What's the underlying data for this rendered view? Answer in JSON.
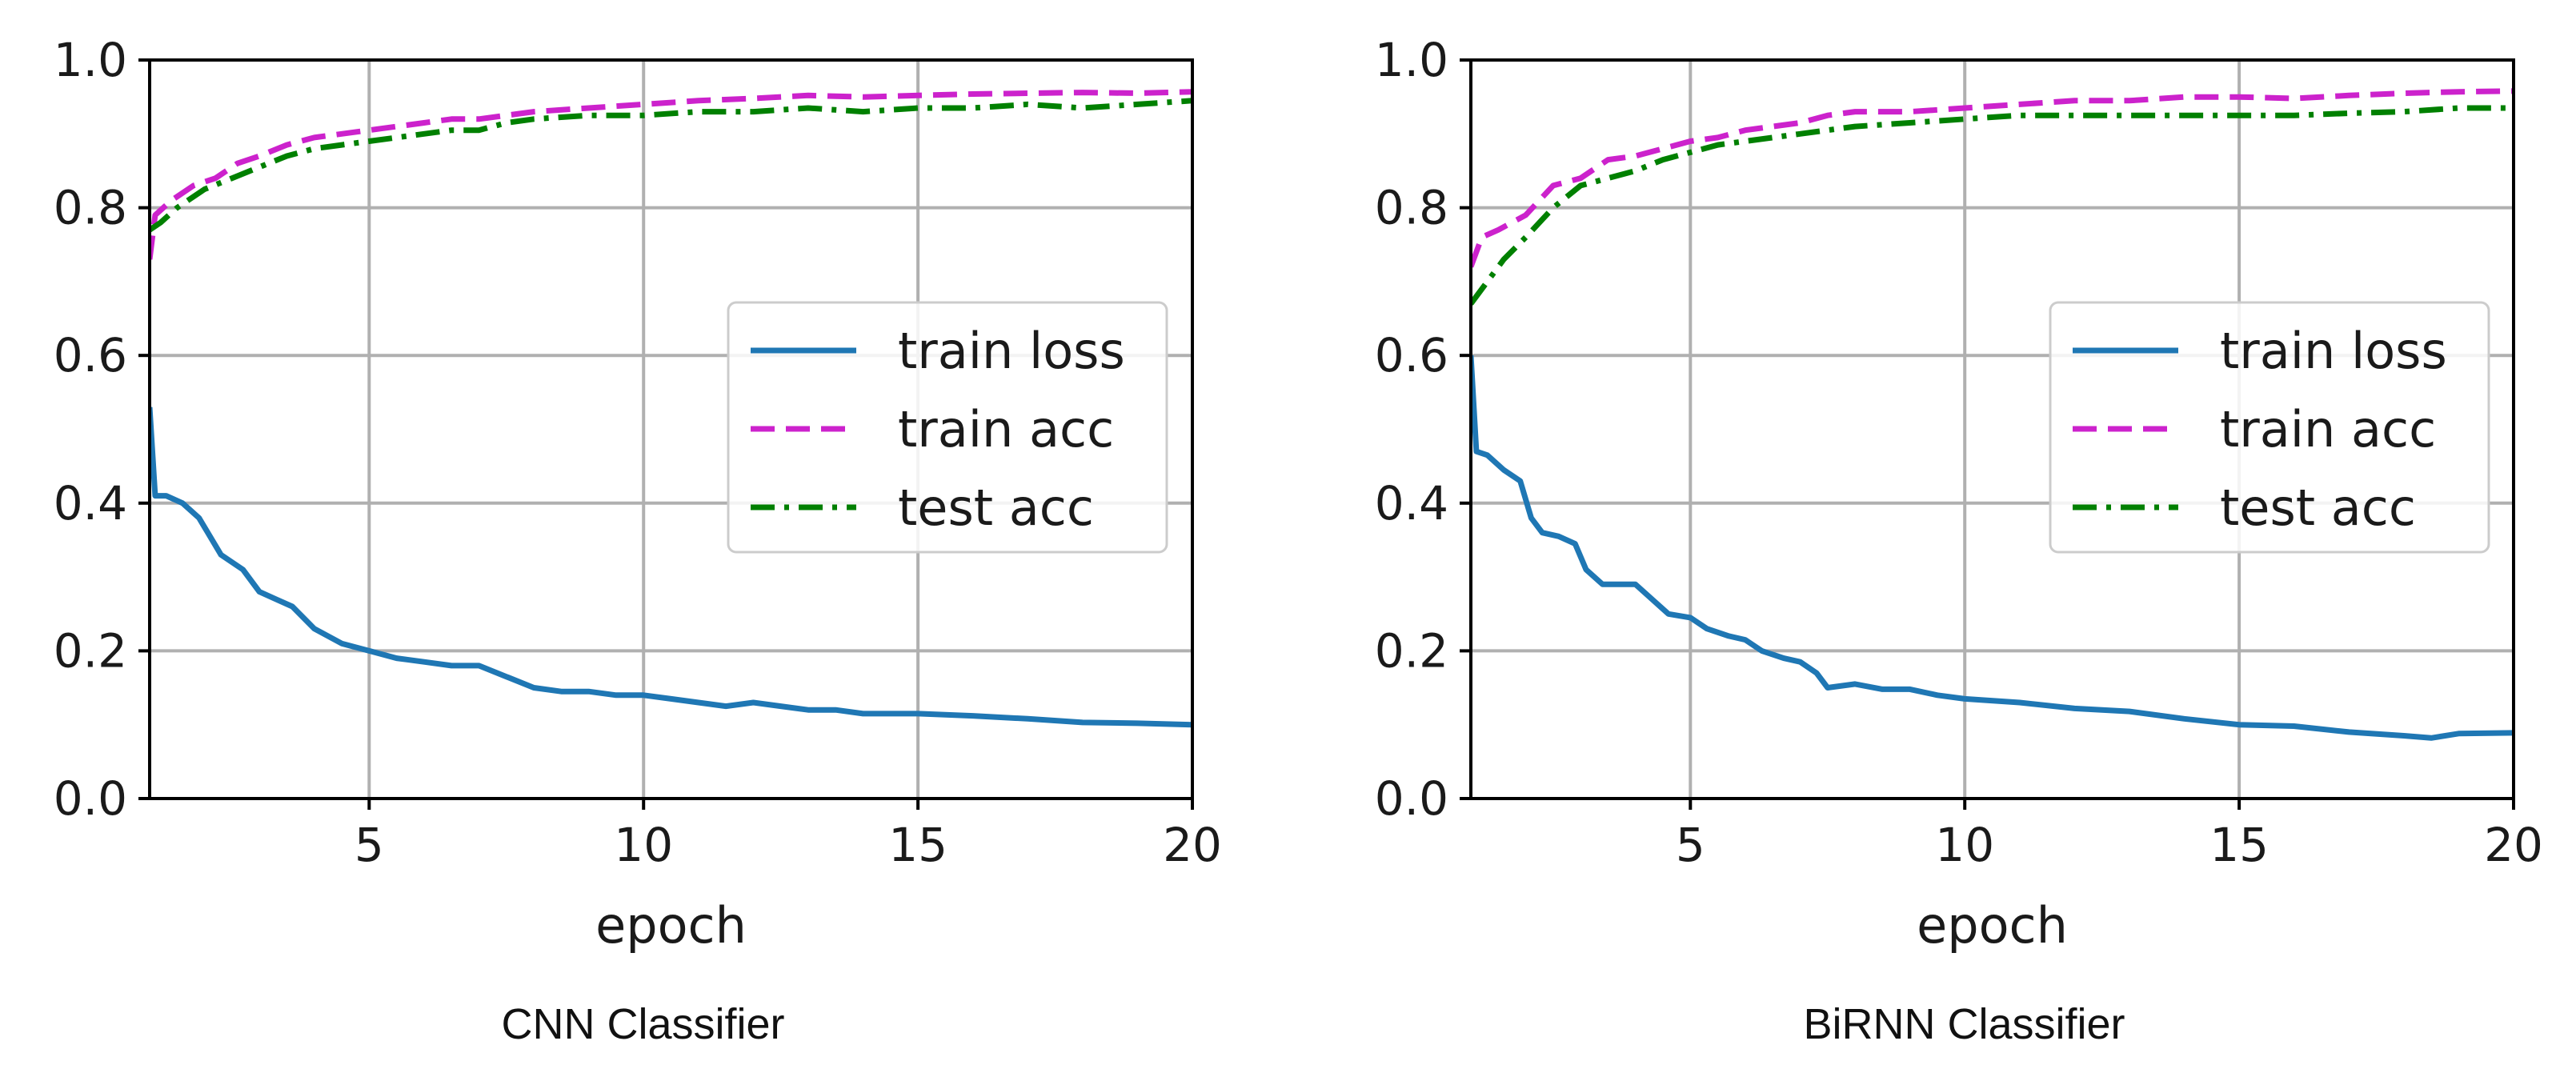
{
  "chart_data": [
    {
      "type": "line",
      "caption": "CNN Classifier",
      "xlabel": "epoch",
      "ylabel": "",
      "xlim": [
        1,
        20
      ],
      "ylim": [
        0.0,
        1.0
      ],
      "xticks": [
        5,
        10,
        15,
        20
      ],
      "xtick_labels": [
        "5",
        "10",
        "15",
        "20"
      ],
      "yticks": [
        0.0,
        0.2,
        0.4,
        0.6,
        0.8,
        1.0
      ],
      "ytick_labels": [
        "0.0",
        "0.2",
        "0.4",
        "0.6",
        "0.8",
        "1.0"
      ],
      "grid": true,
      "legend_position": "center-right",
      "series": [
        {
          "name": "train loss",
          "color": "#1f77b4",
          "style": "solid",
          "x": [
            1,
            1.1,
            1.3,
            1.6,
            1.9,
            2.3,
            2.7,
            3.0,
            3.3,
            3.6,
            4.0,
            4.5,
            5.0,
            5.5,
            6.0,
            6.5,
            7.0,
            7.5,
            8.0,
            8.5,
            9.0,
            9.5,
            10.0,
            10.5,
            11.0,
            11.5,
            12.0,
            12.5,
            13.0,
            13.5,
            14.0,
            15.0,
            16.0,
            17.0,
            18.0,
            19.0,
            20.0
          ],
          "y": [
            0.53,
            0.41,
            0.41,
            0.4,
            0.38,
            0.33,
            0.31,
            0.28,
            0.27,
            0.26,
            0.23,
            0.21,
            0.2,
            0.19,
            0.185,
            0.18,
            0.18,
            0.165,
            0.15,
            0.145,
            0.145,
            0.14,
            0.14,
            0.135,
            0.13,
            0.125,
            0.13,
            0.125,
            0.12,
            0.12,
            0.115,
            0.115,
            0.112,
            0.108,
            0.103,
            0.102,
            0.1
          ]
        },
        {
          "name": "train acc",
          "color": "#cc22cc",
          "style": "dashed",
          "x": [
            1,
            1.1,
            1.4,
            1.8,
            2.2,
            2.6,
            3.0,
            3.5,
            4.0,
            4.5,
            5.0,
            5.5,
            6.0,
            6.5,
            7.0,
            7.5,
            8.0,
            9.0,
            10.0,
            11.0,
            12.0,
            13.0,
            14.0,
            15.0,
            16.0,
            17.0,
            18.0,
            19.0,
            20.0
          ],
          "y": [
            0.73,
            0.79,
            0.81,
            0.83,
            0.84,
            0.86,
            0.87,
            0.885,
            0.895,
            0.9,
            0.905,
            0.91,
            0.915,
            0.92,
            0.92,
            0.925,
            0.93,
            0.935,
            0.94,
            0.945,
            0.948,
            0.952,
            0.95,
            0.952,
            0.954,
            0.955,
            0.956,
            0.955,
            0.957
          ]
        },
        {
          "name": "test acc",
          "color": "#008000",
          "style": "dashdot",
          "x": [
            1,
            1.2,
            1.5,
            2.0,
            2.5,
            3.0,
            3.5,
            4.0,
            4.5,
            5.0,
            5.5,
            6.0,
            6.5,
            7.0,
            7.5,
            8.0,
            9.0,
            10.0,
            11.0,
            12.0,
            13.0,
            14.0,
            15.0,
            16.0,
            17.0,
            18.0,
            19.0,
            20.0
          ],
          "y": [
            0.77,
            0.78,
            0.8,
            0.825,
            0.84,
            0.855,
            0.87,
            0.88,
            0.885,
            0.89,
            0.895,
            0.9,
            0.905,
            0.905,
            0.915,
            0.92,
            0.925,
            0.925,
            0.93,
            0.93,
            0.935,
            0.93,
            0.935,
            0.935,
            0.94,
            0.935,
            0.94,
            0.945
          ]
        }
      ]
    },
    {
      "type": "line",
      "caption": "BiRNN Classifier",
      "xlabel": "epoch",
      "ylabel": "",
      "xlim": [
        1,
        20
      ],
      "ylim": [
        0.0,
        1.0
      ],
      "xticks": [
        5,
        10,
        15,
        20
      ],
      "xtick_labels": [
        "5",
        "10",
        "15",
        "20"
      ],
      "yticks": [
        0.0,
        0.2,
        0.4,
        0.6,
        0.8,
        1.0
      ],
      "ytick_labels": [
        "0.0",
        "0.2",
        "0.4",
        "0.6",
        "0.8",
        "1.0"
      ],
      "grid": true,
      "legend_position": "center-right",
      "series": [
        {
          "name": "train loss",
          "color": "#1f77b4",
          "style": "solid",
          "x": [
            1,
            1.1,
            1.3,
            1.6,
            1.9,
            2.1,
            2.3,
            2.6,
            2.9,
            3.1,
            3.4,
            3.7,
            4.0,
            4.3,
            4.6,
            5.0,
            5.3,
            5.7,
            6.0,
            6.3,
            6.7,
            7.0,
            7.3,
            7.5,
            8.0,
            8.5,
            9.0,
            9.5,
            10.0,
            11.0,
            12.0,
            13.0,
            14.0,
            15.0,
            16.0,
            17.0,
            18.0,
            18.5,
            19.0,
            20.0
          ],
          "y": [
            0.6,
            0.47,
            0.465,
            0.445,
            0.43,
            0.38,
            0.36,
            0.355,
            0.345,
            0.31,
            0.29,
            0.29,
            0.29,
            0.27,
            0.25,
            0.245,
            0.23,
            0.22,
            0.215,
            0.2,
            0.19,
            0.185,
            0.17,
            0.15,
            0.155,
            0.148,
            0.148,
            0.14,
            0.135,
            0.13,
            0.122,
            0.118,
            0.108,
            0.1,
            0.098,
            0.09,
            0.085,
            0.082,
            0.088,
            0.089
          ]
        },
        {
          "name": "train acc",
          "color": "#cc22cc",
          "style": "dashed",
          "x": [
            1,
            1.2,
            1.5,
            2.0,
            2.5,
            3.0,
            3.5,
            4.0,
            4.5,
            5.0,
            5.5,
            6.0,
            6.5,
            7.0,
            7.5,
            8.0,
            9.0,
            10.0,
            11.0,
            12.0,
            13.0,
            14.0,
            15.0,
            16.0,
            17.0,
            18.0,
            19.0,
            20.0
          ],
          "y": [
            0.72,
            0.76,
            0.77,
            0.79,
            0.83,
            0.84,
            0.865,
            0.87,
            0.88,
            0.89,
            0.895,
            0.905,
            0.91,
            0.915,
            0.925,
            0.93,
            0.93,
            0.935,
            0.94,
            0.945,
            0.945,
            0.95,
            0.95,
            0.948,
            0.952,
            0.955,
            0.957,
            0.958
          ]
        },
        {
          "name": "test acc",
          "color": "#008000",
          "style": "dashdot",
          "x": [
            1,
            1.3,
            1.6,
            2.0,
            2.5,
            3.0,
            3.5,
            4.0,
            4.5,
            5.0,
            5.5,
            6.0,
            6.5,
            7.0,
            7.5,
            8.0,
            9.0,
            10.0,
            11.0,
            12.0,
            13.0,
            14.0,
            15.0,
            16.0,
            17.0,
            18.0,
            19.0,
            20.0
          ],
          "y": [
            0.67,
            0.7,
            0.73,
            0.76,
            0.8,
            0.83,
            0.84,
            0.85,
            0.865,
            0.875,
            0.885,
            0.89,
            0.895,
            0.9,
            0.905,
            0.91,
            0.915,
            0.92,
            0.925,
            0.925,
            0.925,
            0.925,
            0.925,
            0.925,
            0.928,
            0.93,
            0.935,
            0.935
          ]
        }
      ]
    }
  ]
}
